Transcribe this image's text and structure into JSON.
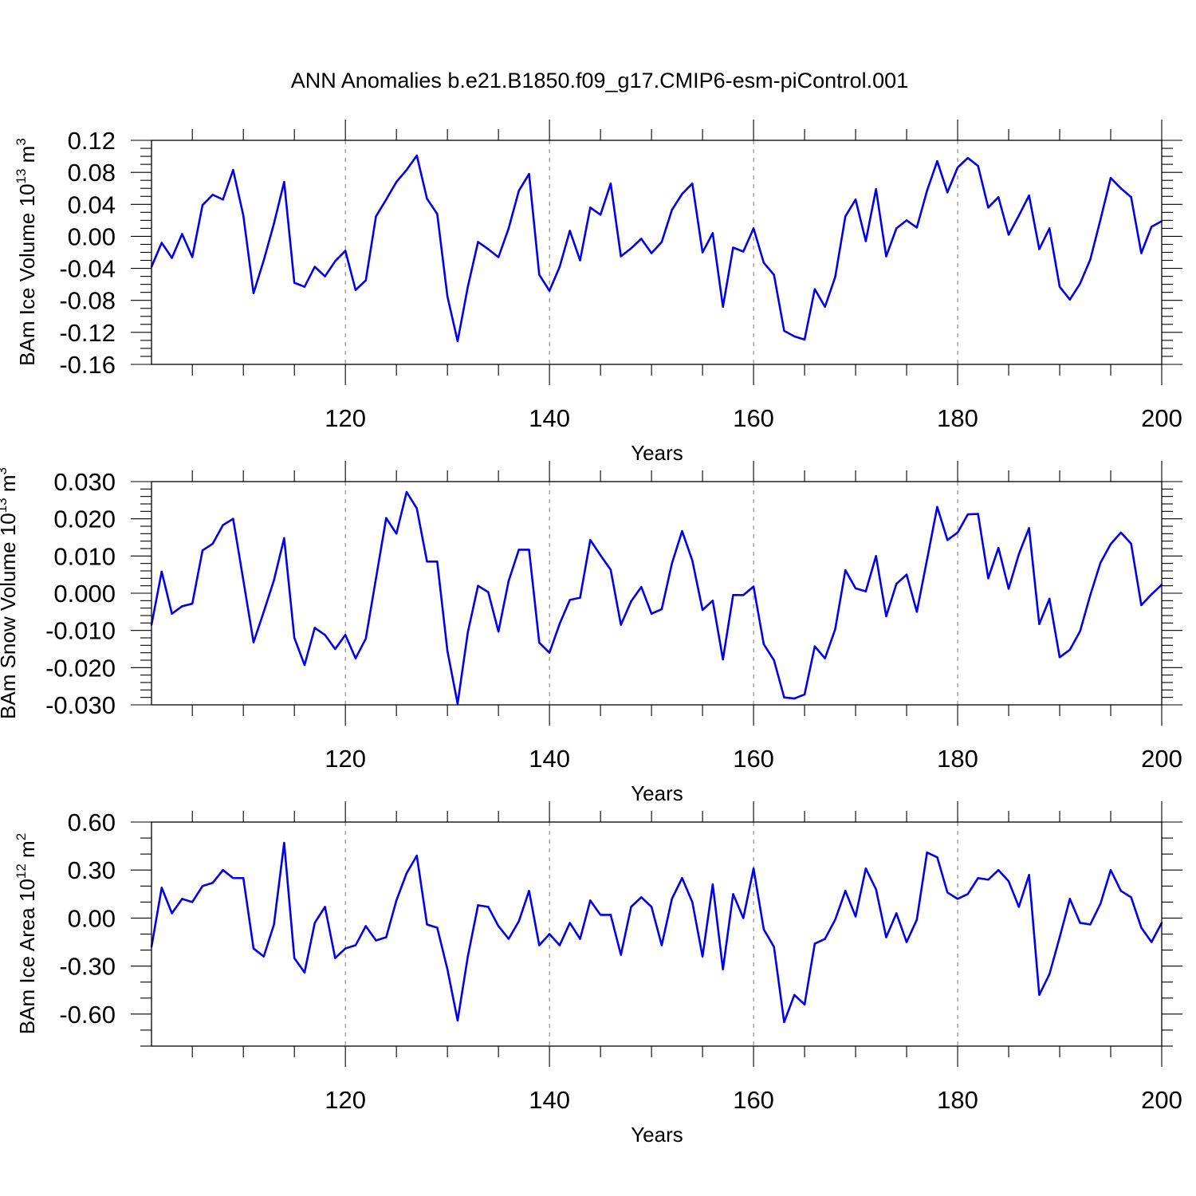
{
  "title": "ANN Anomalies b.e21.B1850.f09_g17.CMIP6-esm-piControl.001",
  "colors": {
    "line": "#0000ee",
    "axis": "#000000",
    "grid": "#999999"
  },
  "chart_data": [
    {
      "type": "line",
      "xlabel": "Years",
      "ylabel": {
        "main": "BAm Ice Volume 10",
        "exp": "13",
        "unit": " m",
        "unit_exp": "3"
      },
      "xlim": [
        101,
        200
      ],
      "ylim": [
        -0.16,
        0.12
      ],
      "xticks": [
        120,
        140,
        160,
        180,
        200
      ],
      "xtick_labels": [
        "120",
        "140",
        "160",
        "180",
        "200"
      ],
      "yticks": [
        -0.16,
        -0.12,
        -0.08,
        -0.04,
        0.0,
        0.04,
        0.08,
        0.12
      ],
      "ytick_labels": [
        "-0.16",
        "-0.12",
        "-0.08",
        "-0.04",
        "0.00",
        "0.04",
        "0.08",
        "0.12"
      ],
      "yminor_step": 0.01,
      "grid": "vertical dashed",
      "series": [
        {
          "name": "BAm Ice Volume",
          "x_start": 101,
          "values": [
            -0.038,
            -0.008,
            -0.027,
            0.003,
            -0.026,
            0.039,
            0.052,
            0.046,
            0.083,
            0.026,
            -0.071,
            -0.03,
            0.016,
            0.068,
            -0.058,
            -0.063,
            -0.038,
            -0.05,
            -0.031,
            -0.018,
            -0.067,
            -0.055,
            0.025,
            0.046,
            0.068,
            0.083,
            0.101,
            0.047,
            0.028,
            -0.075,
            -0.131,
            -0.063,
            -0.007,
            -0.016,
            -0.026,
            0.01,
            0.057,
            0.078,
            -0.048,
            -0.068,
            -0.038,
            0.007,
            -0.03,
            0.036,
            0.027,
            0.066,
            -0.025,
            -0.015,
            -0.003,
            -0.021,
            -0.007,
            0.033,
            0.053,
            0.066,
            -0.02,
            0.004,
            -0.088,
            -0.014,
            -0.019,
            0.01,
            -0.033,
            -0.048,
            -0.118,
            -0.125,
            -0.129,
            -0.066,
            -0.088,
            -0.051,
            0.025,
            0.046,
            -0.006,
            0.059,
            -0.025,
            0.01,
            0.02,
            0.011,
            0.057,
            0.094,
            0.055,
            0.086,
            0.098,
            0.088,
            0.036,
            0.049,
            0.002,
            0.026,
            0.051,
            -0.016,
            0.01,
            -0.063,
            -0.079,
            -0.059,
            -0.029,
            0.021,
            0.073,
            0.06,
            0.049,
            -0.021,
            0.012,
            0.019
          ]
        }
      ]
    },
    {
      "type": "line",
      "xlabel": "Years",
      "ylabel": {
        "main": "BAm Snow Volume 10",
        "exp": "13",
        "unit": " m",
        "unit_exp": "3"
      },
      "xlim": [
        101,
        200
      ],
      "ylim": [
        -0.03,
        0.03
      ],
      "xticks": [
        120,
        140,
        160,
        180,
        200
      ],
      "xtick_labels": [
        "120",
        "140",
        "160",
        "180",
        "200"
      ],
      "yticks": [
        -0.03,
        -0.02,
        -0.01,
        0.0,
        0.01,
        0.02,
        0.03
      ],
      "ytick_labels": [
        "-0.030",
        "-0.020",
        "-0.010",
        "0.000",
        "0.010",
        "0.020",
        "0.030"
      ],
      "yminor_step": 0.002,
      "grid": "vertical dashed",
      "series": [
        {
          "name": "BAm Snow Volume",
          "x_start": 101,
          "values": [
            -0.0085,
            0.0058,
            -0.0055,
            -0.0035,
            -0.0028,
            0.0115,
            0.0133,
            0.0183,
            0.02,
            0.0035,
            -0.0132,
            -0.005,
            0.0035,
            0.0148,
            -0.012,
            -0.0193,
            -0.0093,
            -0.0112,
            -0.015,
            -0.0112,
            -0.0175,
            -0.0122,
            0.004,
            0.0202,
            0.016,
            0.0272,
            0.0228,
            0.0085,
            0.0085,
            -0.0155,
            -0.0297,
            -0.0105,
            0.002,
            0.0003,
            -0.0103,
            0.0033,
            0.0117,
            0.0117,
            -0.0133,
            -0.016,
            -0.0082,
            -0.0018,
            -0.0012,
            0.0143,
            0.0102,
            0.0063,
            -0.0085,
            -0.0022,
            0.0017,
            -0.0055,
            -0.0043,
            0.008,
            0.0167,
            0.0088,
            -0.0045,
            -0.002,
            -0.0178,
            -0.0005,
            -0.0005,
            0.0018,
            -0.0137,
            -0.018,
            -0.028,
            -0.0283,
            -0.0272,
            -0.0143,
            -0.0175,
            -0.0097,
            0.0062,
            0.0013,
            0.0005,
            0.01,
            -0.0062,
            0.0025,
            0.005,
            -0.005,
            0.009,
            0.0232,
            0.0143,
            0.0163,
            0.0212,
            0.0213,
            0.004,
            0.0122,
            0.0012,
            0.0105,
            0.0175,
            -0.0083,
            -0.0015,
            -0.0172,
            -0.0152,
            -0.0102,
            -0.0005,
            0.0082,
            0.0132,
            0.0163,
            0.0133,
            -0.0032,
            -0.0003,
            0.0023
          ]
        }
      ]
    },
    {
      "type": "line",
      "xlabel": "Years",
      "ylabel": {
        "main": "BAm Ice Area 10",
        "exp": "12",
        "unit": " m",
        "unit_exp": "2"
      },
      "xlim": [
        101,
        200
      ],
      "ylim": [
        -0.8,
        0.6
      ],
      "xticks": [
        120,
        140,
        160,
        180,
        200
      ],
      "xtick_labels": [
        "120",
        "140",
        "160",
        "180",
        "200"
      ],
      "yticks": [
        -0.6,
        -0.3,
        0.0,
        0.3,
        0.6
      ],
      "ytick_labels": [
        "-0.60",
        "-0.30",
        "0.00",
        "0.30",
        "0.60"
      ],
      "yminor_step": 0.1,
      "grid": "vertical dashed",
      "series": [
        {
          "name": "BAm Ice Area",
          "x_start": 101,
          "values": [
            -0.18,
            0.19,
            0.03,
            0.12,
            0.1,
            0.2,
            0.22,
            0.3,
            0.25,
            0.25,
            -0.19,
            -0.24,
            -0.04,
            0.47,
            -0.25,
            -0.34,
            -0.03,
            0.07,
            -0.25,
            -0.19,
            -0.17,
            -0.05,
            -0.14,
            -0.12,
            0.11,
            0.28,
            0.39,
            -0.04,
            -0.06,
            -0.32,
            -0.64,
            -0.24,
            0.08,
            0.07,
            -0.05,
            -0.13,
            -0.02,
            0.17,
            -0.17,
            -0.1,
            -0.17,
            -0.03,
            -0.13,
            0.11,
            0.02,
            0.02,
            -0.23,
            0.07,
            0.13,
            0.07,
            -0.17,
            0.12,
            0.25,
            0.1,
            -0.24,
            0.21,
            -0.32,
            0.15,
            0.0,
            0.31,
            -0.07,
            -0.18,
            -0.65,
            -0.48,
            -0.54,
            -0.16,
            -0.13,
            -0.01,
            0.17,
            0.01,
            0.31,
            0.18,
            -0.12,
            0.03,
            -0.15,
            -0.01,
            0.41,
            0.38,
            0.16,
            0.12,
            0.15,
            0.25,
            0.24,
            0.3,
            0.23,
            0.07,
            0.27,
            -0.48,
            -0.35,
            -0.12,
            0.12,
            -0.03,
            -0.04,
            0.09,
            0.3,
            0.17,
            0.13,
            -0.06,
            -0.15,
            -0.03
          ]
        }
      ]
    }
  ]
}
